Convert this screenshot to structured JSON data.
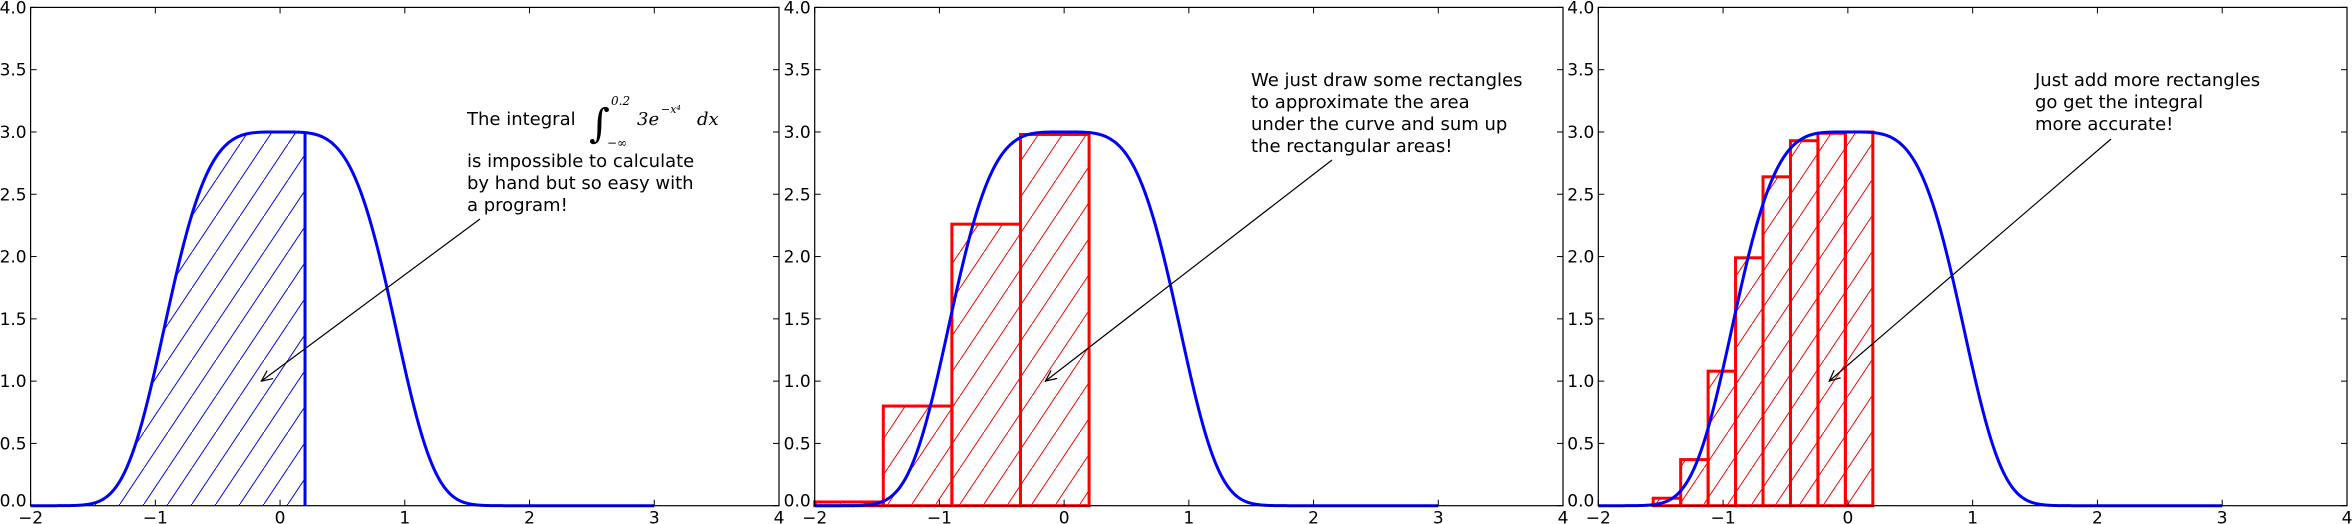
{
  "chart_data": [
    {
      "type": "area",
      "function": "3*exp(-x^4)",
      "curve_domain": [
        -2,
        3
      ],
      "xlim": [
        -2,
        4
      ],
      "ylim": [
        0,
        4
      ],
      "xticks": [
        "−2",
        "−1",
        "0",
        "1",
        "2",
        "3",
        "4"
      ],
      "yticks": [
        "0.0",
        "0.5",
        "1.0",
        "1.5",
        "2.0",
        "2.5",
        "3.0",
        "3.5",
        "4.0"
      ],
      "shaded_interval": [
        -2,
        0.2
      ],
      "rectangles": [],
      "color": "#0000ff",
      "hatch_color": "#0000ff",
      "annotation": {
        "text_prefix": "The integral",
        "math": {
          "upper": "0.2",
          "lower": "−∞",
          "integrand": "3e",
          "exponent": "−x⁴",
          "dx": "dx"
        },
        "lines": [
          "is impossible to calculate",
          "by hand but so easy with",
          "a program!"
        ],
        "arrow_target": [
          -0.15,
          1.0
        ]
      }
    },
    {
      "type": "bar",
      "function": "3*exp(-x^4)",
      "curve_domain": [
        -2,
        3
      ],
      "xlim": [
        -2,
        4
      ],
      "ylim": [
        0,
        4
      ],
      "xticks": [
        "−2",
        "−1",
        "0",
        "1",
        "2",
        "3",
        "4"
      ],
      "yticks": [
        "0.0",
        "0.5",
        "1.0",
        "1.5",
        "2.0",
        "2.5",
        "3.0",
        "3.5",
        "4.0"
      ],
      "rectangles": [
        {
          "x0": -2.0,
          "x1": -1.45,
          "height": 0.03
        },
        {
          "x0": -1.45,
          "x1": -0.9,
          "height": 0.8
        },
        {
          "x0": -0.9,
          "x1": -0.35,
          "height": 2.26
        },
        {
          "x0": -0.35,
          "x1": 0.2,
          "height": 2.98
        }
      ],
      "color": "#0000ff",
      "rect_color": "#ff0000",
      "annotation": {
        "lines": [
          "We just draw some rectangles",
          "to approximate the area",
          "under the curve and sum up",
          "the rectangular areas!"
        ],
        "arrow_target": [
          -0.15,
          1.0
        ]
      }
    },
    {
      "type": "bar",
      "function": "3*exp(-x^4)",
      "curve_domain": [
        -2,
        3
      ],
      "xlim": [
        -2,
        4
      ],
      "ylim": [
        0,
        4
      ],
      "xticks": [
        "−2",
        "−1",
        "0",
        "1",
        "2",
        "3",
        "4"
      ],
      "yticks": [
        "0.0",
        "0.5",
        "1.0",
        "1.5",
        "2.0",
        "2.5",
        "3.0",
        "3.5",
        "4.0"
      ],
      "rectangles": [
        {
          "x0": -1.56,
          "x1": -1.34,
          "height": 0.06
        },
        {
          "x0": -1.34,
          "x1": -1.12,
          "height": 0.37
        },
        {
          "x0": -1.12,
          "x1": -0.9,
          "height": 1.08
        },
        {
          "x0": -0.9,
          "x1": -0.68,
          "height": 1.99
        },
        {
          "x0": -0.68,
          "x1": -0.46,
          "height": 2.64
        },
        {
          "x0": -0.46,
          "x1": -0.24,
          "height": 2.93
        },
        {
          "x0": -0.24,
          "x1": -0.02,
          "height": 2.99
        },
        {
          "x0": -0.02,
          "x1": 0.2,
          "height": 3.0
        }
      ],
      "color": "#0000ff",
      "rect_color": "#ff0000",
      "annotation": {
        "lines": [
          "Just add more rectangles",
          "go get the integral",
          "more accurate!"
        ],
        "arrow_target": [
          -0.15,
          1.0
        ]
      }
    }
  ]
}
